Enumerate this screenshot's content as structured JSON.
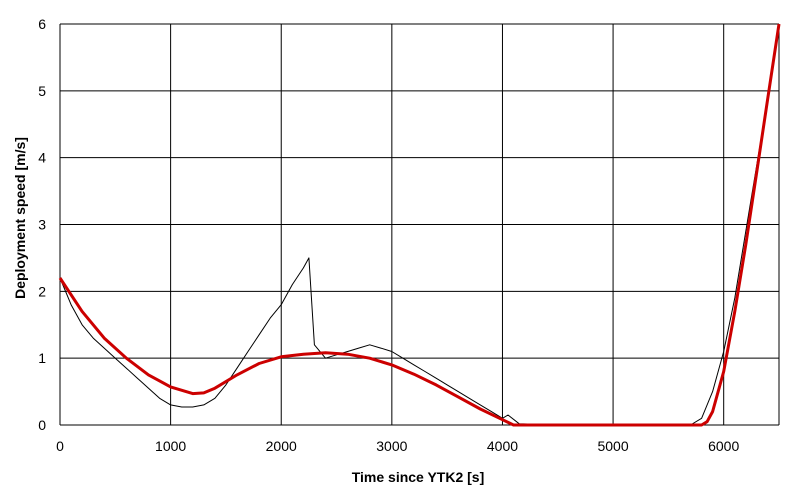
{
  "chart_data": {
    "type": "line",
    "xlabel": "Time since YTK2 [s]",
    "ylabel": "Deployment speed [m/s]",
    "xlim": [
      0,
      6500
    ],
    "ylim": [
      0,
      6
    ],
    "xticks": [
      0,
      1000,
      2000,
      3000,
      4000,
      5000,
      6000
    ],
    "xtick_labels": [
      "0",
      "1000",
      "2000",
      "3000",
      "4000",
      "5000",
      "6000"
    ],
    "yticks": [
      0,
      1,
      2,
      3,
      4,
      5,
      6
    ],
    "ytick_labels": [
      "0",
      "1",
      "2",
      "3",
      "4",
      "5",
      "6"
    ],
    "grid": true,
    "legend": "none",
    "series": [
      {
        "color": "#000000",
        "style": "noisy measured",
        "x": [
          0,
          100,
          200,
          300,
          400,
          500,
          600,
          700,
          800,
          900,
          1000,
          1100,
          1200,
          1300,
          1400,
          1500,
          1600,
          1700,
          1800,
          1900,
          2000,
          2100,
          2200,
          2250,
          2300,
          2400,
          2500,
          2600,
          2700,
          2800,
          2900,
          3000,
          3100,
          3200,
          3300,
          3400,
          3500,
          3600,
          3700,
          3800,
          3900,
          4000,
          4050,
          4150,
          4300,
          5000,
          5400,
          5700,
          5800,
          5900,
          6000,
          6100,
          6200,
          6300,
          6400,
          6500
        ],
        "y": [
          2.2,
          1.8,
          1.5,
          1.3,
          1.15,
          1.0,
          0.85,
          0.7,
          0.55,
          0.4,
          0.3,
          0.27,
          0.27,
          0.3,
          0.4,
          0.6,
          0.85,
          1.1,
          1.35,
          1.6,
          1.8,
          2.1,
          2.35,
          2.5,
          1.2,
          1.0,
          1.05,
          1.1,
          1.15,
          1.2,
          1.15,
          1.1,
          1.0,
          0.9,
          0.8,
          0.7,
          0.6,
          0.5,
          0.4,
          0.3,
          0.2,
          0.1,
          0.15,
          0.02,
          0.01,
          0.01,
          0.0,
          0.0,
          0.1,
          0.5,
          1.1,
          1.9,
          2.9,
          3.9,
          4.9,
          6.0
        ]
      },
      {
        "color": "#cc0000",
        "style": "smooth fit",
        "x": [
          0,
          200,
          400,
          600,
          800,
          1000,
          1200,
          1300,
          1400,
          1600,
          1800,
          2000,
          2200,
          2400,
          2600,
          2800,
          3000,
          3200,
          3400,
          3600,
          3800,
          4000,
          4100,
          5800,
          5850,
          5900,
          6000,
          6100,
          6200,
          6300,
          6400,
          6500
        ],
        "y": [
          2.2,
          1.7,
          1.3,
          1.0,
          0.75,
          0.57,
          0.47,
          0.48,
          0.55,
          0.75,
          0.92,
          1.02,
          1.06,
          1.08,
          1.06,
          1.0,
          0.9,
          0.76,
          0.6,
          0.42,
          0.24,
          0.08,
          0.0,
          0.0,
          0.05,
          0.2,
          0.8,
          1.7,
          2.7,
          3.8,
          4.9,
          6.0
        ]
      }
    ]
  }
}
